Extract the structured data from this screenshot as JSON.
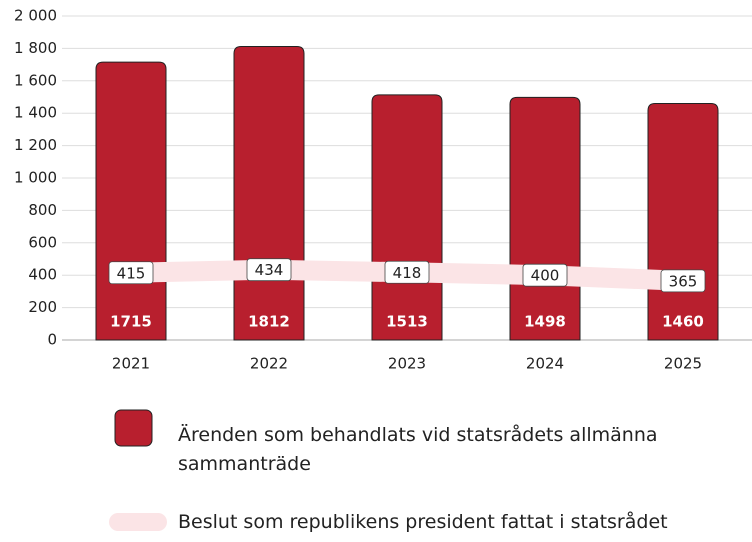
{
  "chart_data": {
    "type": "bar",
    "categories": [
      "2021",
      "2022",
      "2023",
      "2024",
      "2025"
    ],
    "series": [
      {
        "name": "Ärenden som behandlats vid statsrådets allmänna sammanträde",
        "type": "bar",
        "color": "#b81f2e",
        "values": [
          1715,
          1812,
          1513,
          1498,
          1460
        ]
      },
      {
        "name": "Beslut som republikens president fattat i statsrådet",
        "type": "line",
        "color": "#fbe4e6",
        "values": [
          415,
          434,
          418,
          400,
          365
        ]
      }
    ],
    "ylim": [
      0,
      2000
    ],
    "yticks": [
      0,
      200,
      400,
      600,
      800,
      {
        "value": 1000,
        "label": "1 000"
      },
      {
        "value": 1200,
        "label": "1 200"
      },
      {
        "value": 1400,
        "label": "1 400"
      },
      {
        "value": 1600,
        "label": "1 600"
      },
      {
        "value": 1800,
        "label": "1 800"
      },
      {
        "value": 2000,
        "label": "2 000"
      }
    ],
    "grid": true
  }
}
